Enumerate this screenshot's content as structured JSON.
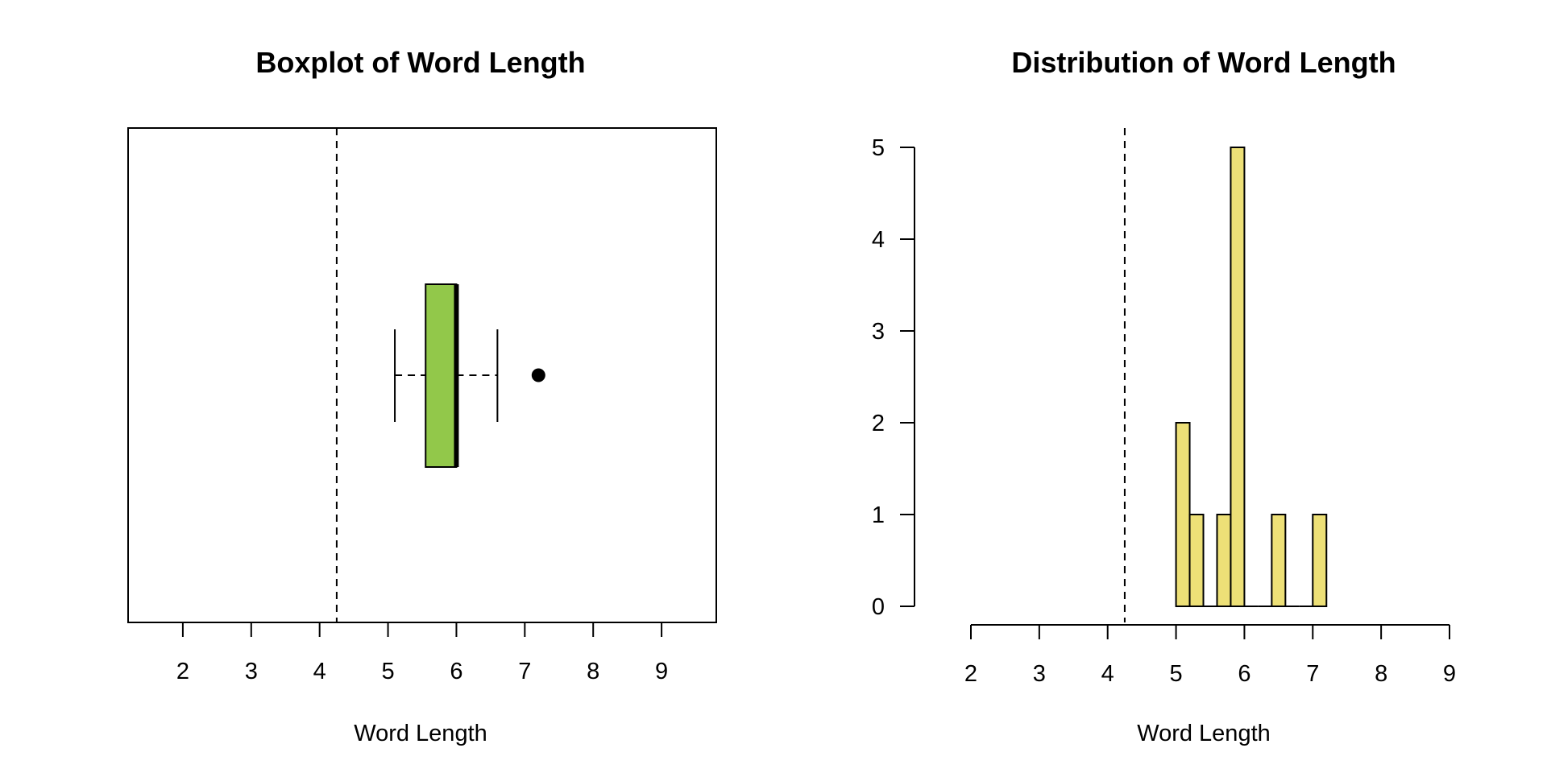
{
  "chart_data": [
    {
      "type": "boxplot",
      "title": "Boxplot of Word Length",
      "xlabel": "Word Length",
      "ylabel": "",
      "xlim": [
        1.2,
        9.8
      ],
      "xticks": [
        2,
        3,
        4,
        5,
        6,
        7,
        8,
        9
      ],
      "orientation": "horizontal",
      "stats": {
        "whisker_low": 5.1,
        "q1": 5.55,
        "median": 6.0,
        "q3": 6.0,
        "whisker_high": 6.6,
        "outliers": [
          7.2
        ]
      },
      "reference_line": 4.25,
      "box_color": "#92c84a",
      "framed": true
    },
    {
      "type": "bar",
      "title": "Distribution of Word Length",
      "xlabel": "Word Length",
      "ylabel": "",
      "xlim": [
        2,
        9
      ],
      "ylim": [
        0,
        5
      ],
      "xticks": [
        2,
        3,
        4,
        5,
        6,
        7,
        8,
        9
      ],
      "yticks": [
        0,
        1,
        2,
        3,
        4,
        5
      ],
      "bin_width": 0.2,
      "bins": [
        {
          "start": 5.0,
          "count": 2
        },
        {
          "start": 5.2,
          "count": 1
        },
        {
          "start": 5.4,
          "count": 0
        },
        {
          "start": 5.6,
          "count": 1
        },
        {
          "start": 5.8,
          "count": 5
        },
        {
          "start": 6.0,
          "count": 0
        },
        {
          "start": 6.2,
          "count": 0
        },
        {
          "start": 6.4,
          "count": 1
        },
        {
          "start": 6.6,
          "count": 0
        },
        {
          "start": 6.8,
          "count": 0
        },
        {
          "start": 7.0,
          "count": 1
        }
      ],
      "reference_line": 4.25,
      "bar_color": "#ede077"
    }
  ]
}
